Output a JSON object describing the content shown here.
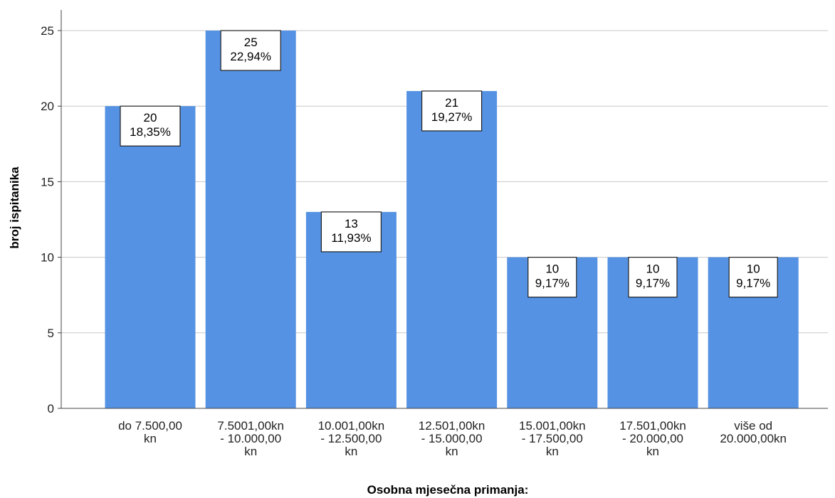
{
  "chart_data": {
    "type": "bar",
    "title": "",
    "xlabel": "Osobna mjesečna primanja:",
    "ylabel": "broj ispitanika",
    "ylim": [
      0,
      25
    ],
    "yticks": [
      "0",
      "5",
      "10",
      "15",
      "20",
      "25"
    ],
    "grid": true,
    "categories": [
      [
        "do 7.500,00",
        "kn"
      ],
      [
        "7.5001,00kn",
        "- 10.000,00",
        "kn"
      ],
      [
        "10.001,00kn",
        "- 12.500,00",
        "kn"
      ],
      [
        "12.501,00kn",
        "- 15.000,00",
        "kn"
      ],
      [
        "15.001,00kn",
        "- 17.500,00",
        "kn"
      ],
      [
        "17.501,00kn",
        "- 20.000,00",
        "kn"
      ],
      [
        "više od",
        "20.000,00kn"
      ]
    ],
    "values": [
      20,
      25,
      13,
      21,
      10,
      10,
      10
    ],
    "value_labels": [
      "20",
      "25",
      "13",
      "21",
      "10",
      "10",
      "10"
    ],
    "percent_labels": [
      "18,35%",
      "22,94%",
      "11,93%",
      "19,27%",
      "9,17%",
      "9,17%",
      "9,17%"
    ],
    "bar_color": "#5592e3"
  }
}
